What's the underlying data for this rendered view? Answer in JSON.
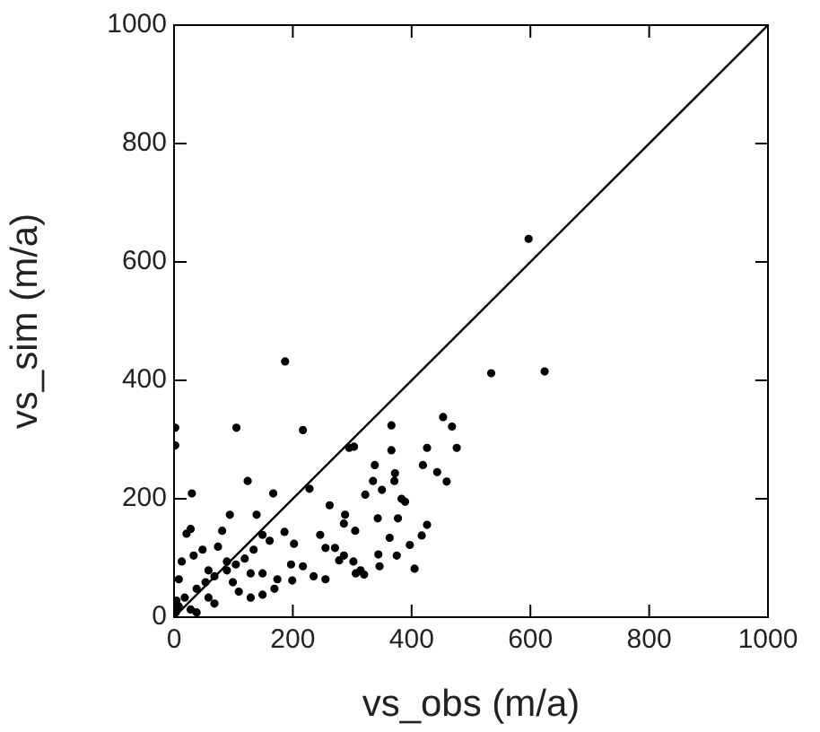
{
  "chart_data": {
    "type": "scatter",
    "xlabel": "vs_obs (m/a)",
    "ylabel": "vs_sim (m/a)",
    "xlim": [
      0,
      1000
    ],
    "ylim": [
      0,
      1000
    ],
    "xticks": [
      0,
      200,
      400,
      600,
      800,
      1000
    ],
    "yticks": [
      0,
      200,
      400,
      600,
      800,
      1000
    ],
    "grid": false,
    "legend": false,
    "marker": "circle",
    "series": [
      {
        "color": "#000000",
        "x": [
          597,
          534,
          624,
          187,
          105,
          217,
          366,
          453,
          468,
          476,
          426,
          295,
          303,
          338,
          419,
          443,
          459,
          372,
          366,
          335,
          350,
          322,
          371,
          383,
          389,
          124,
          228,
          167,
          30,
          262,
          288,
          286,
          305,
          343,
          377,
          426,
          417,
          397,
          363,
          375,
          344,
          405,
          320,
          314,
          346,
          246,
          255,
          271,
          286,
          278,
          302,
          306,
          202,
          186,
          139,
          94,
          81,
          28,
          21,
          217,
          197,
          235,
          255,
          199,
          169,
          149,
          161,
          134,
          119,
          104,
          89,
          68,
          53,
          38,
          18,
          8,
          58,
          109,
          129,
          149,
          28,
          13,
          33,
          48,
          74,
          89,
          58,
          8,
          4,
          3,
          38,
          68,
          99,
          129,
          149,
          174,
          2,
          2
        ],
        "values": [
          639,
          412,
          415,
          432,
          320,
          316,
          324,
          338,
          322,
          286,
          286,
          286,
          288,
          257,
          257,
          245,
          229,
          243,
          282,
          230,
          215,
          207,
          230,
          200,
          195,
          230,
          217,
          209,
          209,
          189,
          173,
          158,
          146,
          167,
          167,
          156,
          138,
          122,
          134,
          104,
          106,
          82,
          72,
          79,
          86,
          139,
          117,
          117,
          104,
          96,
          94,
          74,
          124,
          144,
          173,
          173,
          146,
          149,
          141,
          86,
          89,
          69,
          64,
          62,
          48,
          139,
          129,
          114,
          99,
          89,
          79,
          69,
          59,
          48,
          33,
          18,
          33,
          43,
          33,
          38,
          13,
          94,
          104,
          114,
          119,
          94,
          79,
          64,
          28,
          8,
          8,
          23,
          59,
          74,
          74,
          64,
          320,
          290
        ]
      },
      {
        "type": "line",
        "color": "#000000",
        "x": [
          0,
          1000
        ],
        "values": [
          0,
          1000
        ],
        "marker": "none"
      }
    ]
  }
}
